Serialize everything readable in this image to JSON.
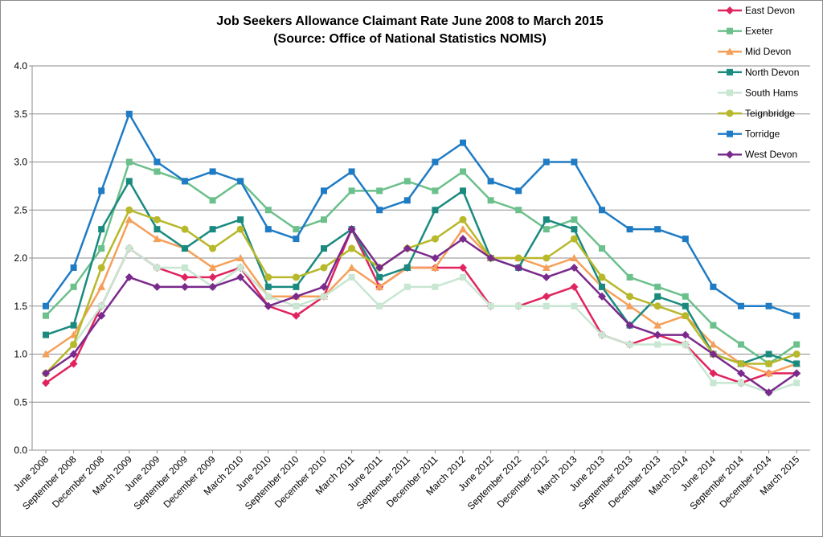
{
  "chart_data": {
    "type": "line",
    "title": "Job Seekers Allowance Claimant Rate June 2008 to March 2015",
    "subtitle": "(Source: Office of National Statistics NOMIS)",
    "xlabel": "",
    "ylabel": "",
    "ylim": [
      0,
      4
    ],
    "yticks": [
      "0.0",
      "0.5",
      "1.0",
      "1.5",
      "2.0",
      "2.5",
      "3.0",
      "3.5",
      "4.0"
    ],
    "grid": true,
    "legend": "right",
    "categories": [
      "June 2008",
      "September 2008",
      "December 2008",
      "March 2009",
      "June 2009",
      "September 2009",
      "December 2009",
      "March 2010",
      "June 2010",
      "September 2010",
      "December 2010",
      "March 2011",
      "June 2011",
      "September 2011",
      "December 2011",
      "March 2012",
      "June 2012",
      "September 2012",
      "December 2012",
      "March 2013",
      "June 2013",
      "September 2013",
      "December 2013",
      "March 2014",
      "June 2014",
      "September 2014",
      "December 2014",
      "March 2015"
    ],
    "series": [
      {
        "name": "East Devon",
        "color": "#e0245e",
        "marker": "diamond",
        "values": [
          0.7,
          0.9,
          1.5,
          2.1,
          1.9,
          1.8,
          1.8,
          1.9,
          1.5,
          1.4,
          1.6,
          2.3,
          1.7,
          1.9,
          1.9,
          1.9,
          1.5,
          1.5,
          1.6,
          1.7,
          1.2,
          1.1,
          1.2,
          1.1,
          0.8,
          0.7,
          0.8,
          0.8
        ]
      },
      {
        "name": "Exeter",
        "color": "#6cc08b",
        "marker": "square",
        "values": [
          1.4,
          1.7,
          2.1,
          3.0,
          2.9,
          2.8,
          2.6,
          2.8,
          2.5,
          2.3,
          2.4,
          2.7,
          2.7,
          2.8,
          2.7,
          2.9,
          2.6,
          2.5,
          2.3,
          2.4,
          2.1,
          1.8,
          1.7,
          1.6,
          1.3,
          1.1,
          0.9,
          1.1
        ]
      },
      {
        "name": "Mid Devon",
        "color": "#f5a05a",
        "marker": "triangle",
        "values": [
          1.0,
          1.2,
          1.7,
          2.4,
          2.2,
          2.1,
          1.9,
          2.0,
          1.6,
          1.6,
          1.6,
          1.9,
          1.7,
          1.9,
          1.9,
          2.3,
          2.0,
          2.0,
          1.9,
          2.0,
          1.7,
          1.5,
          1.3,
          1.4,
          1.1,
          0.9,
          0.8,
          0.9
        ]
      },
      {
        "name": "North Devon",
        "color": "#1a8a7f",
        "marker": "square",
        "values": [
          1.2,
          1.3,
          2.3,
          2.8,
          2.3,
          2.1,
          2.3,
          2.4,
          1.7,
          1.7,
          2.1,
          2.3,
          1.8,
          1.9,
          2.5,
          2.7,
          2.0,
          1.9,
          2.4,
          2.3,
          1.7,
          1.3,
          1.6,
          1.5,
          1.0,
          0.9,
          1.0,
          0.9
        ]
      },
      {
        "name": "South Hams",
        "color": "#c8e6d2",
        "marker": "square",
        "values": [
          0.8,
          1.1,
          1.5,
          2.1,
          1.9,
          1.9,
          1.7,
          1.9,
          1.6,
          1.5,
          1.6,
          1.8,
          1.5,
          1.7,
          1.7,
          1.8,
          1.5,
          1.5,
          1.5,
          1.5,
          1.2,
          1.1,
          1.1,
          1.1,
          0.7,
          0.7,
          0.6,
          0.7
        ]
      },
      {
        "name": "Teignbridge",
        "color": "#b7b82a",
        "marker": "circle",
        "values": [
          0.8,
          1.1,
          1.9,
          2.5,
          2.4,
          2.3,
          2.1,
          2.3,
          1.8,
          1.8,
          1.9,
          2.1,
          1.9,
          2.1,
          2.2,
          2.4,
          2.0,
          2.0,
          2.0,
          2.2,
          1.8,
          1.6,
          1.5,
          1.4,
          1.0,
          0.9,
          0.9,
          1.0
        ]
      },
      {
        "name": "Torridge",
        "color": "#1f7bc4",
        "marker": "square",
        "values": [
          1.5,
          1.9,
          2.7,
          3.5,
          3.0,
          2.8,
          2.9,
          2.8,
          2.3,
          2.2,
          2.7,
          2.9,
          2.5,
          2.6,
          3.0,
          3.2,
          2.8,
          2.7,
          3.0,
          3.0,
          2.5,
          2.3,
          2.3,
          2.2,
          1.7,
          1.5,
          1.5,
          1.4
        ]
      },
      {
        "name": "West Devon",
        "color": "#7a2a8c",
        "marker": "diamond",
        "values": [
          0.8,
          1.0,
          1.4,
          1.8,
          1.7,
          1.7,
          1.7,
          1.8,
          1.5,
          1.6,
          1.7,
          2.3,
          1.9,
          2.1,
          2.0,
          2.2,
          2.0,
          1.9,
          1.8,
          1.9,
          1.6,
          1.3,
          1.2,
          1.2,
          1.0,
          0.8,
          0.6,
          0.8
        ]
      }
    ]
  }
}
